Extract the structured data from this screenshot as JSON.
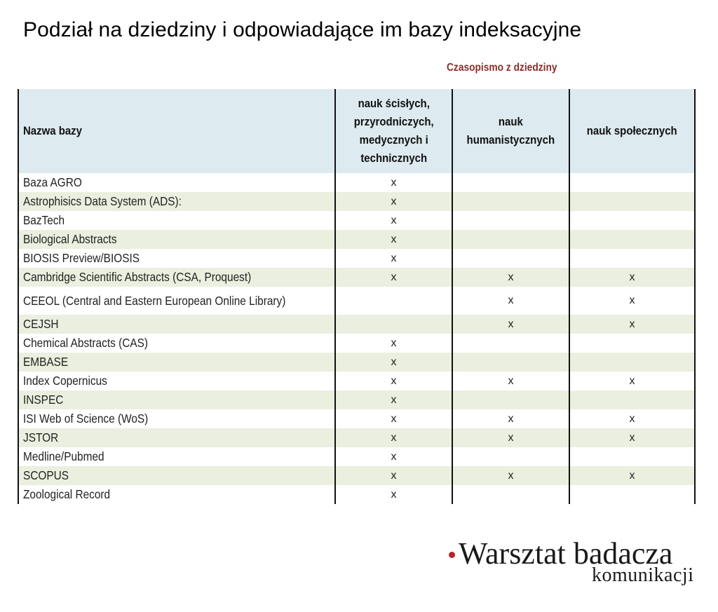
{
  "title": "Podział na dziedziny i odpowiadające im bazy indeksacyjne",
  "subheader": "Czasopismo z dziedziny",
  "columns": {
    "name": "Nazwa bazy",
    "exact": [
      "nauk ścisłych,",
      "przyrodniczych,",
      "medycznych i",
      "technicznych"
    ],
    "humanities": [
      "nauk",
      "humanistycznych"
    ],
    "social": "nauk społecznych"
  },
  "rows": [
    {
      "name": "Baza AGRO",
      "exact": "x",
      "humanities": "",
      "social": ""
    },
    {
      "name": "Astrophisics Data System (ADS):",
      "exact": "x",
      "humanities": "",
      "social": ""
    },
    {
      "name": "BazTech",
      "exact": "x",
      "humanities": "",
      "social": ""
    },
    {
      "name": "Biological Abstracts",
      "exact": "x",
      "humanities": "",
      "social": ""
    },
    {
      "name": "BIOSIS Preview/BIOSIS",
      "exact": "x",
      "humanities": "",
      "social": ""
    },
    {
      "name": "Cambridge Scientific Abstracts (CSA, Proquest)",
      "exact": "x",
      "humanities": "x",
      "social": "x"
    },
    {
      "name": "CEEOL (Central and Eastern European Online Library)",
      "exact": "",
      "humanities": "x",
      "social": "x"
    },
    {
      "name": "CEJSH",
      "exact": "",
      "humanities": "x",
      "social": "x"
    },
    {
      "name": "Chemical Abstracts (CAS)",
      "exact": "x",
      "humanities": "",
      "social": ""
    },
    {
      "name": "EMBASE",
      "exact": "x",
      "humanities": "",
      "social": ""
    },
    {
      "name": "Index Copernicus",
      "exact": "x",
      "humanities": "x",
      "social": "x"
    },
    {
      "name": "INSPEC",
      "exact": "x",
      "humanities": "",
      "social": ""
    },
    {
      "name": "ISI Web of Science (WoS)",
      "exact": "x",
      "humanities": "x",
      "social": "x"
    },
    {
      "name": "JSTOR",
      "exact": "x",
      "humanities": "x",
      "social": "x"
    },
    {
      "name": "Medline/Pubmed",
      "exact": "x",
      "humanities": "",
      "social": ""
    },
    {
      "name": "SCOPUS",
      "exact": "x",
      "humanities": "x",
      "social": "x"
    },
    {
      "name": "Zoological Record",
      "exact": "x",
      "humanities": "",
      "social": ""
    }
  ],
  "logo": {
    "main": "Warsztat badacza",
    "sub": "komunikacji"
  },
  "colors": {
    "header_bg": "#ddeaf0",
    "stripe_bg": "#eaefdf",
    "subheader": "#8b2d2a",
    "logo_dot": "#b3262c"
  }
}
